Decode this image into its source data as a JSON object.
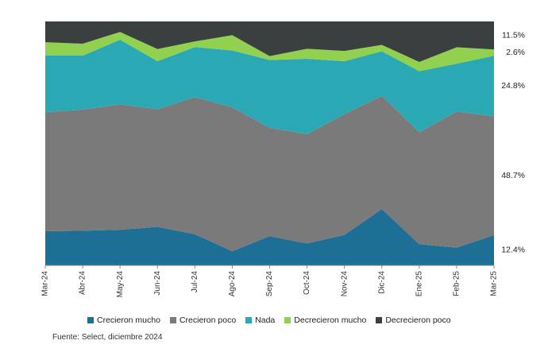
{
  "chart_data": {
    "type": "area",
    "stacked": true,
    "normalized": true,
    "categories": [
      "Mar-24",
      "Abr-24",
      "May-24",
      "Jun-24",
      "Jul-24",
      "Ago-24",
      "Sep-24",
      "Oct-24",
      "Nov-24",
      "Dic-24",
      "Ene-25",
      "Feb-25",
      "Mar-25"
    ],
    "series": [
      {
        "name": "Crecieron mucho",
        "color": "#1e6f96",
        "values": [
          14.0,
          14.2,
          14.6,
          15.8,
          12.8,
          5.8,
          12.0,
          9.0,
          12.5,
          23.1,
          8.7,
          7.3,
          12.4
        ]
      },
      {
        "name": "Crecieron poco",
        "color": "#7a7a7a",
        "values": [
          48.8,
          49.7,
          51.4,
          48.2,
          56.2,
          59.0,
          44.4,
          44.8,
          49.5,
          46.4,
          45.9,
          55.8,
          48.7
        ]
      },
      {
        "name": "Nada",
        "color": "#2aa9b5",
        "values": [
          23.2,
          22.1,
          26.5,
          19.7,
          20.5,
          23.3,
          27.8,
          30.9,
          21.7,
          18.3,
          25.0,
          19.6,
          24.8
        ]
      },
      {
        "name": "Decrecieron mucho",
        "color": "#92d050",
        "values": [
          5.5,
          4.9,
          3.2,
          5.0,
          2.3,
          6.3,
          1.6,
          4.1,
          4.2,
          2.6,
          3.8,
          6.7,
          2.6
        ]
      },
      {
        "name": "Decrecieron poco",
        "color": "#3a3f3f",
        "values": [
          8.5,
          9.1,
          4.3,
          11.3,
          8.2,
          5.6,
          14.2,
          11.2,
          12.1,
          9.6,
          16.6,
          10.6,
          11.5
        ]
      }
    ],
    "end_labels": [
      "12.4%",
      "48.7%",
      "24.8%",
      "2.6%",
      "11.5%"
    ],
    "ylim": [
      0,
      100
    ],
    "grid": false,
    "legend_position": "bottom"
  },
  "source": "Fuente: Select, diciembre 2024"
}
